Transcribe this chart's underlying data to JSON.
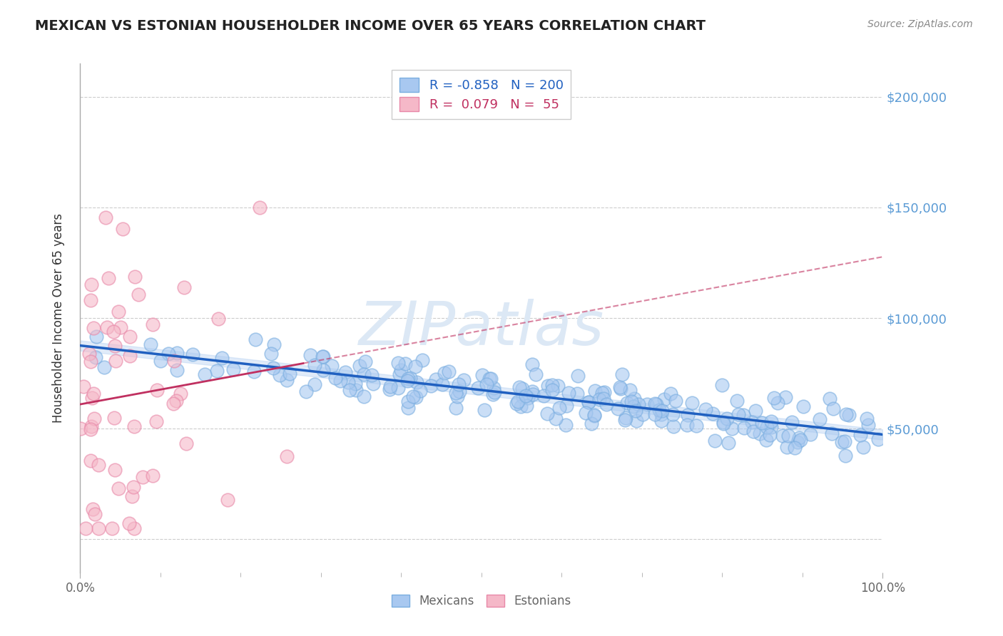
{
  "title": "MEXICAN VS ESTONIAN HOUSEHOLDER INCOME OVER 65 YEARS CORRELATION CHART",
  "source": "Source: ZipAtlas.com",
  "ylabel": "Householder Income Over 65 years",
  "xlim": [
    0,
    1.0
  ],
  "ylim": [
    -15000,
    215000
  ],
  "blue_R": -0.858,
  "blue_N": 200,
  "pink_R": 0.079,
  "pink_N": 55,
  "blue_color": "#a8c8f0",
  "pink_color": "#f5b8c8",
  "blue_edge_color": "#7aaee0",
  "pink_edge_color": "#e888a8",
  "blue_line_color": "#2060c0",
  "pink_line_color": "#c03060",
  "grid_color": "#cccccc",
  "title_color": "#222222",
  "ytick_color": "#5b9bd5",
  "watermark_color": "#d8e8f8",
  "legend_blue_color": "#2060c0",
  "legend_pink_color": "#c03060",
  "seed": 42
}
